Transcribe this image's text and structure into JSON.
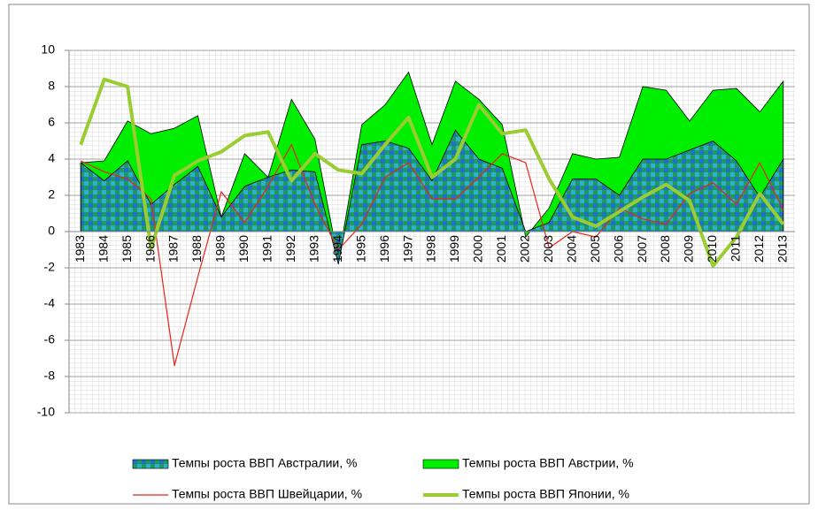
{
  "chart_data": {
    "type": "area_line",
    "categories": [
      "1983",
      "1984",
      "1985",
      "1986",
      "1987",
      "1988",
      "1989",
      "1990",
      "1991",
      "1992",
      "1993",
      "1994",
      "1995",
      "1996",
      "1997",
      "1998",
      "1999",
      "2000",
      "2001",
      "2002",
      "2003",
      "2004",
      "2005",
      "2006",
      "2007",
      "2008",
      "2009",
      "2010",
      "2011",
      "2012",
      "2013"
    ],
    "series": [
      {
        "name": "Темпы роста ВВП Австралии, %",
        "kind": "area",
        "color": "#1f6fd0",
        "values": [
          3.8,
          2.8,
          3.9,
          1.5,
          2.6,
          3.6,
          0.8,
          2.5,
          3.0,
          3.4,
          3.3,
          -1.8,
          4.8,
          5.0,
          4.6,
          2.8,
          5.6,
          4.0,
          3.5,
          0.0,
          0.5,
          2.9,
          2.9,
          2.0,
          4.0,
          4.0,
          4.5,
          5.0,
          3.9,
          1.9,
          4.0
        ]
      },
      {
        "name": "Темпы роста ВВП Австрии, %",
        "kind": "area",
        "color": "#00ee00",
        "values": [
          3.8,
          3.9,
          6.1,
          5.4,
          5.7,
          6.4,
          0.8,
          4.3,
          3.0,
          7.3,
          5.1,
          -1.6,
          5.9,
          7.0,
          8.8,
          4.8,
          8.3,
          7.3,
          5.9,
          -0.3,
          1.3,
          4.3,
          4.0,
          4.1,
          8.0,
          7.8,
          6.1,
          7.8,
          7.9,
          6.6,
          8.3
        ]
      },
      {
        "name": "Темпы роста ВВП Швейцарии, %",
        "kind": "line",
        "color": "#e8231b",
        "values": [
          3.9,
          3.3,
          2.9,
          1.8,
          -7.4,
          -2.5,
          2.2,
          0.5,
          2.5,
          4.8,
          1.5,
          -1.0,
          0.4,
          3.0,
          3.8,
          1.8,
          1.8,
          3.0,
          4.3,
          3.8,
          -0.9,
          0.0,
          -0.3,
          1.3,
          0.7,
          0.4,
          2.1,
          2.7,
          1.5,
          3.8,
          1.2
        ]
      },
      {
        "name": "Темпы роста ВВП Японии, %",
        "kind": "line",
        "color": "#9acd32",
        "values": [
          4.8,
          8.4,
          8.0,
          -0.9,
          3.1,
          3.9,
          4.4,
          5.3,
          5.5,
          2.8,
          4.3,
          3.4,
          3.2,
          4.8,
          6.3,
          3.0,
          4.0,
          7.0,
          5.4,
          5.6,
          2.9,
          0.8,
          0.3,
          1.1,
          1.9,
          2.6,
          1.7,
          -1.9,
          -0.3,
          2.1,
          0.4
        ]
      }
    ],
    "ylim": [
      -10,
      10
    ],
    "yticks": [
      -10,
      -8,
      -6,
      -4,
      -2,
      0,
      2,
      4,
      6,
      8,
      10
    ],
    "grid": true,
    "legend": "bottom"
  }
}
